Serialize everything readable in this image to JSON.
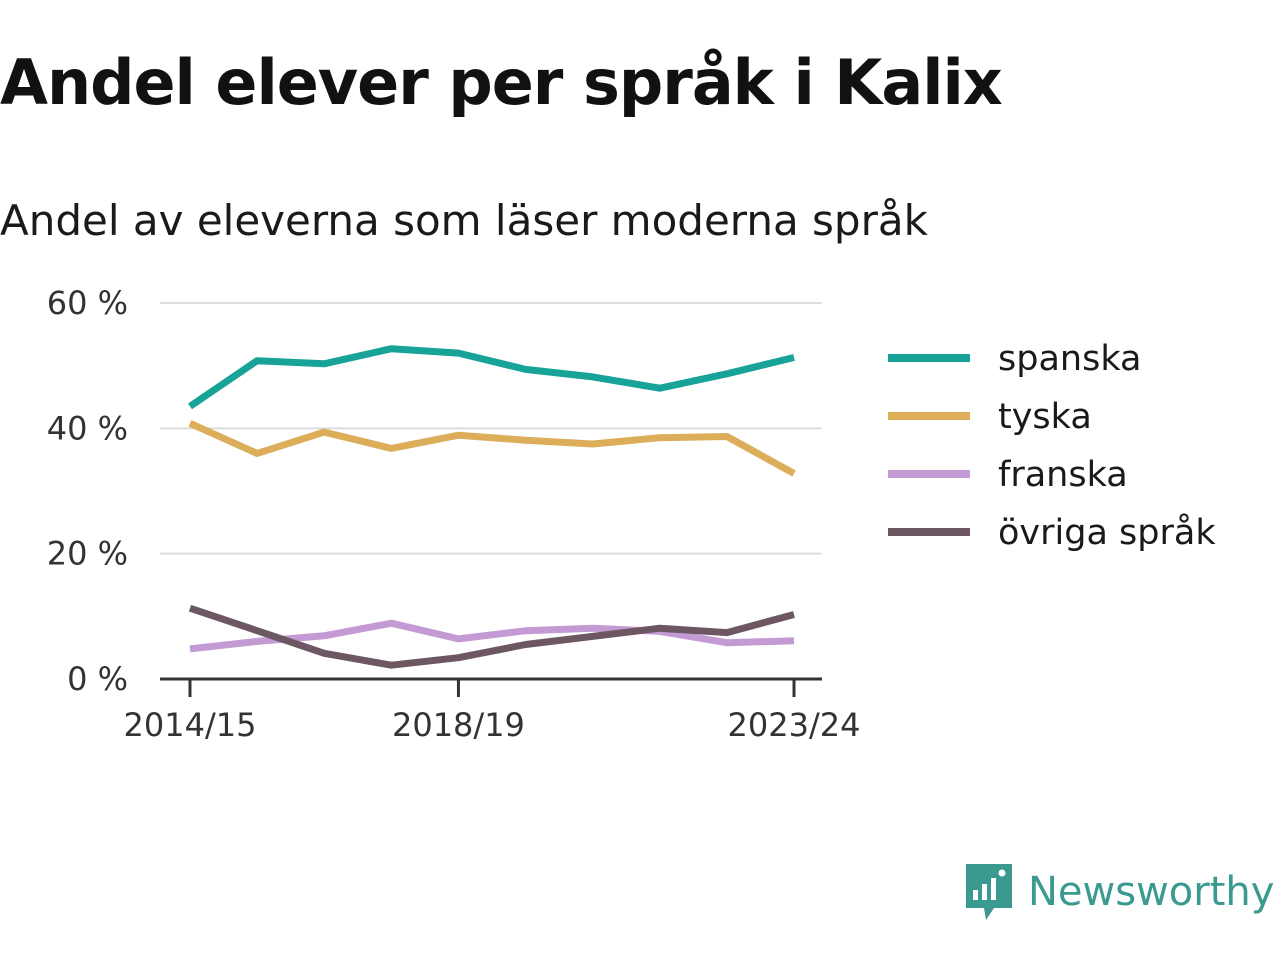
{
  "title": "Andel elever per språk i Kalix",
  "subtitle": "Andel av eleverna som läser moderna språk",
  "brand": {
    "name": "Newsworthy",
    "color": "#3a9a8f",
    "icon": "newsworthy-logo-icon"
  },
  "chart_data": {
    "type": "line",
    "x": [
      "2014/15",
      "2015/16",
      "2016/17",
      "2017/18",
      "2018/19",
      "2019/20",
      "2020/21",
      "2021/22",
      "2022/23",
      "2023/24"
    ],
    "x_tick_labels": [
      "2014/15",
      "2018/19",
      "2023/24"
    ],
    "y_tick_labels": [
      "60 %",
      "40 %",
      "20 %",
      "0 %"
    ],
    "ylim": [
      0,
      60
    ],
    "grid": true,
    "legend_position": "right",
    "series": [
      {
        "name": "spanska",
        "color": "#17a398",
        "values": [
          43.5,
          50.8,
          50.3,
          52.7,
          52.0,
          49.4,
          48.2,
          46.4,
          48.7,
          51.3
        ]
      },
      {
        "name": "tyska",
        "color": "#dcae5a",
        "values": [
          40.8,
          36.0,
          39.4,
          36.8,
          38.9,
          38.1,
          37.5,
          38.5,
          38.7,
          32.8
        ]
      },
      {
        "name": "franska",
        "color": "#c39ad3",
        "values": [
          4.8,
          6.0,
          6.9,
          8.9,
          6.4,
          7.7,
          8.1,
          7.6,
          5.8,
          6.1
        ]
      },
      {
        "name": "övriga språk",
        "color": "#6c5763",
        "values": [
          11.3,
          7.7,
          4.1,
          2.2,
          3.4,
          5.5,
          6.8,
          8.1,
          7.4,
          10.3
        ]
      }
    ]
  }
}
